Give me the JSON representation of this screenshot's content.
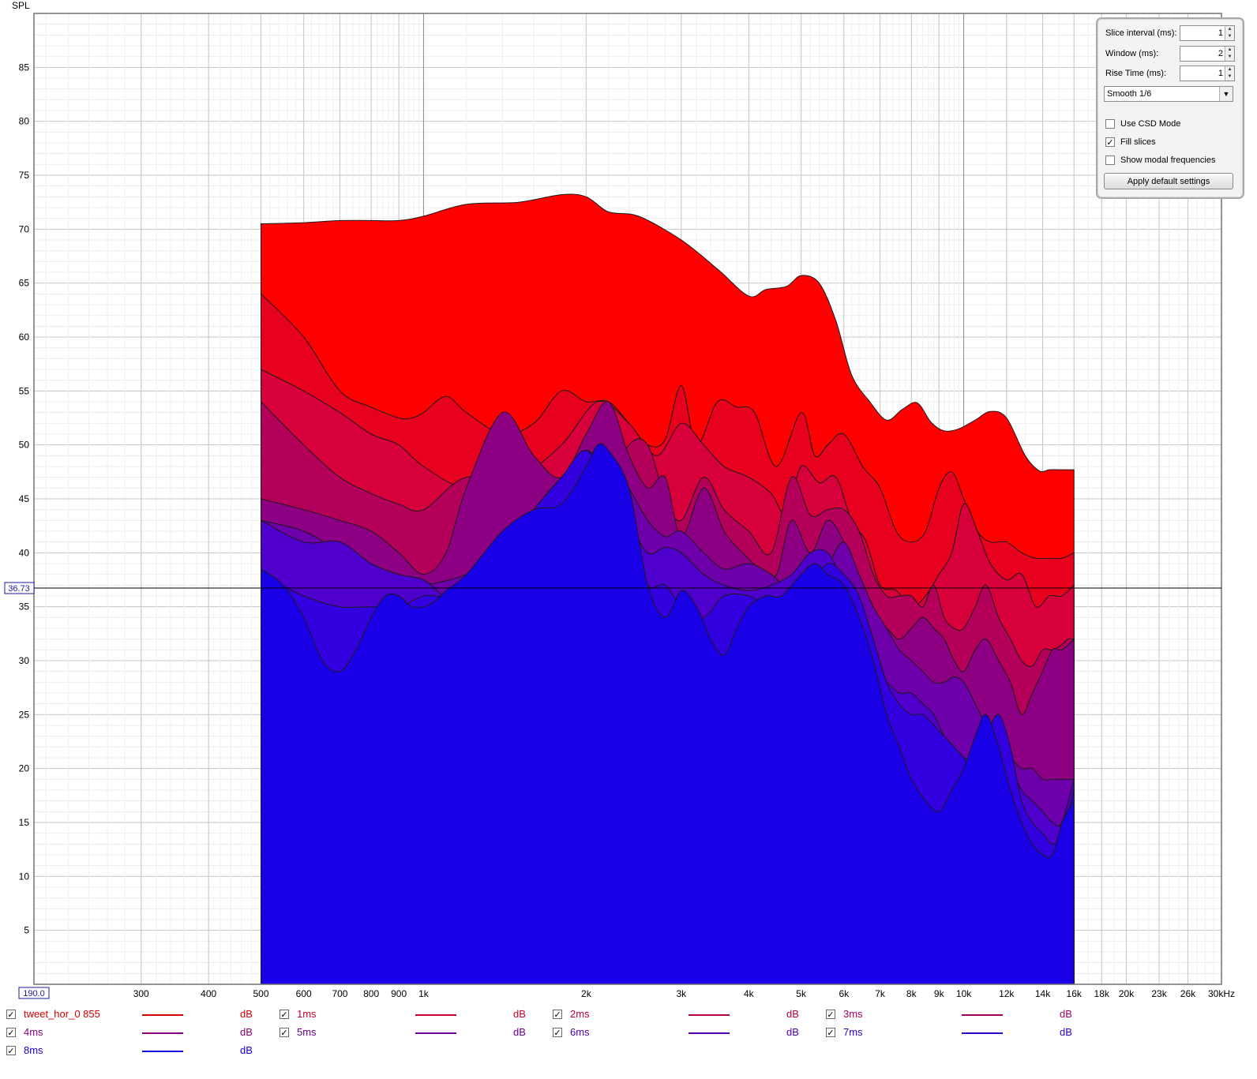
{
  "chart_data": {
    "type": "area",
    "ylabel": "SPL",
    "x_scale": "log",
    "xlim": [
      190,
      30000
    ],
    "ylim": [
      0,
      90
    ],
    "x_ticks": [
      {
        "v": 300,
        "label": "300"
      },
      {
        "v": 400,
        "label": "400"
      },
      {
        "v": 500,
        "label": "500"
      },
      {
        "v": 600,
        "label": "600"
      },
      {
        "v": 700,
        "label": "700"
      },
      {
        "v": 800,
        "label": "800"
      },
      {
        "v": 900,
        "label": "900"
      },
      {
        "v": 1000,
        "label": "1k"
      },
      {
        "v": 2000,
        "label": "2k"
      },
      {
        "v": 3000,
        "label": "3k"
      },
      {
        "v": 4000,
        "label": "4k"
      },
      {
        "v": 5000,
        "label": "5k"
      },
      {
        "v": 6000,
        "label": "6k"
      },
      {
        "v": 7000,
        "label": "7k"
      },
      {
        "v": 8000,
        "label": "8k"
      },
      {
        "v": 9000,
        "label": "9k"
      },
      {
        "v": 10000,
        "label": "10k"
      },
      {
        "v": 12000,
        "label": "12k"
      },
      {
        "v": 14000,
        "label": "14k"
      },
      {
        "v": 16000,
        "label": "16k"
      },
      {
        "v": 18000,
        "label": "18k"
      },
      {
        "v": 20000,
        "label": "20k"
      },
      {
        "v": 23000,
        "label": "23k"
      },
      {
        "v": 26000,
        "label": "26k"
      },
      {
        "v": 30000,
        "label": "30kHz"
      }
    ],
    "x_start_label": "190.0",
    "y_ticks": [
      5,
      10,
      15,
      20,
      25,
      30,
      35,
      40,
      45,
      50,
      55,
      60,
      65,
      70,
      75,
      80,
      85
    ],
    "cursor_y": 36.73,
    "cursor_label": "36.73",
    "grid": true,
    "fill_slices": true,
    "series": [
      {
        "name": "tweet_hor_0 855",
        "color": "#ff0000",
        "x": [
          500,
          600,
          700,
          800,
          900,
          1000,
          1200,
          1500,
          1800,
          2000,
          2200,
          2500,
          3000,
          3500,
          4000,
          4300,
          4700,
          5000,
          5400,
          5800,
          6200,
          6700,
          7200,
          7700,
          8200,
          8700,
          9200,
          9800,
          10500,
          11200,
          12000,
          13000,
          13800,
          14400,
          15000,
          15600,
          16000
        ],
        "y": [
          70.5,
          70.6,
          70.8,
          70.8,
          70.8,
          71.2,
          72.3,
          72.5,
          73.2,
          73,
          71.6,
          71.2,
          69,
          66.3,
          63.8,
          64.4,
          64.7,
          65.7,
          65,
          61.5,
          56.5,
          54,
          52.3,
          53.3,
          53.9,
          52.1,
          51.3,
          51.5,
          52.3,
          53.1,
          52.5,
          49,
          47.6,
          47.7,
          47.7,
          47.7,
          47.7
        ]
      },
      {
        "name": "1ms",
        "color": "#e8001f",
        "x": [
          500,
          600,
          700,
          800,
          900,
          950,
          1000,
          1100,
          1200,
          1400,
          1600,
          1800,
          2000,
          2200,
          2400,
          2600,
          2800,
          3000,
          3200,
          3500,
          3800,
          4100,
          4500,
          5000,
          5300,
          5600,
          6000,
          6500,
          7000,
          7500,
          8000,
          8500,
          9000,
          9500,
          10000,
          10600,
          11200,
          12000,
          12800,
          13600,
          14400,
          15200,
          16000
        ],
        "y": [
          64,
          60,
          55,
          53.5,
          52.5,
          52.5,
          53,
          54.5,
          53,
          51,
          52,
          55,
          54,
          54,
          52,
          50,
          50.5,
          55.5,
          50,
          54,
          53.5,
          53,
          48,
          53,
          49,
          50,
          51,
          48,
          46,
          42,
          41,
          42,
          46,
          47.5,
          45,
          42,
          41,
          41,
          40,
          39.5,
          39.5,
          39.5,
          40
        ]
      },
      {
        "name": "2ms",
        "color": "#d8003a",
        "x": [
          500,
          600,
          700,
          800,
          900,
          1000,
          1200,
          1500,
          1800,
          2100,
          2400,
          2700,
          3000,
          3300,
          3600,
          4000,
          4400,
          4700,
          5000,
          5400,
          5800,
          6200,
          6600,
          7000,
          7500,
          8000,
          8500,
          9000,
          9500,
          10000,
          10600,
          11200,
          12000,
          12800,
          13600,
          14400,
          15200,
          16000
        ],
        "y": [
          57,
          55,
          53,
          51,
          50,
          48,
          46,
          47,
          50,
          54,
          52,
          49,
          52,
          50,
          48,
          47,
          45.5,
          43.5,
          48,
          46.5,
          47,
          43,
          41,
          37,
          36.5,
          35,
          36,
          38,
          40,
          44.5,
          42,
          39,
          37.5,
          38,
          35,
          36,
          36,
          37
        ]
      },
      {
        "name": "3ms",
        "color": "#b4005a",
        "x": [
          500,
          600,
          700,
          800,
          900,
          1000,
          1200,
          1500,
          1800,
          2000,
          2200,
          2400,
          2600,
          2800,
          3000,
          3300,
          3600,
          4000,
          4400,
          4800,
          5200,
          5600,
          6000,
          6400,
          6800,
          7200,
          7600,
          8000,
          8400,
          8800,
          9200,
          9600,
          10000,
          10500,
          11000,
          11600,
          12200,
          12800,
          13400,
          14000,
          14600,
          15200,
          15600,
          16000
        ],
        "y": [
          54,
          50,
          47,
          45.5,
          44.5,
          44,
          47,
          46,
          44.5,
          47,
          46,
          50,
          50,
          45,
          43,
          47,
          44,
          42,
          40,
          47,
          43.5,
          44,
          44,
          42,
          38,
          36,
          36,
          36,
          35,
          37,
          34,
          33,
          33,
          35,
          37,
          34,
          32,
          30,
          29.5,
          31,
          31,
          31.5,
          32,
          32
        ]
      },
      {
        "name": "4ms",
        "color": "#8e0083",
        "x": [
          500,
          600,
          700,
          800,
          900,
          1000,
          1100,
          1200,
          1400,
          1600,
          1800,
          2000,
          2200,
          2400,
          2600,
          2800,
          3000,
          3300,
          3600,
          3900,
          4200,
          4500,
          4800,
          5200,
          5600,
          6000,
          6400,
          6800,
          7200,
          7600,
          8000,
          8400,
          8800,
          9200,
          9600,
          10000,
          10500,
          11000,
          11600,
          12200,
          12800,
          13400,
          14000,
          14600,
          15200,
          16000
        ],
        "y": [
          45,
          44,
          43,
          42,
          40,
          38,
          40,
          46,
          53,
          49,
          47,
          51,
          54,
          49,
          46,
          47,
          41.5,
          46,
          42,
          40,
          38.5,
          38,
          43,
          40,
          43,
          41,
          37.5,
          34,
          33,
          32,
          33,
          34,
          33,
          32,
          30,
          29,
          31,
          32,
          30,
          28,
          25,
          27,
          29,
          31,
          31,
          32
        ]
      },
      {
        "name": "5ms",
        "color": "#6e00ab",
        "x": [
          500,
          600,
          700,
          800,
          900,
          1000,
          1200,
          1400,
          1600,
          1800,
          2000,
          2200,
          2400,
          2600,
          2800,
          3000,
          3300,
          3600,
          4000,
          4400,
          4800,
          5200,
          5600,
          6000,
          6400,
          6800,
          7200,
          7600,
          8000,
          8400,
          8800,
          9200,
          9600,
          10000,
          10500,
          11000,
          11600,
          12200,
          12800,
          13400,
          14000,
          14600,
          15200,
          16000
        ],
        "y": [
          43,
          42,
          40,
          37.5,
          37,
          37,
          38,
          40,
          44,
          47,
          49,
          49,
          46,
          43,
          41.5,
          42,
          40,
          38.5,
          39,
          38,
          36.5,
          38,
          39,
          41,
          38,
          35,
          33,
          31,
          30,
          29,
          28,
          28,
          28.5,
          28,
          26,
          24,
          22,
          21,
          20,
          20,
          19,
          19,
          19,
          19
        ]
      },
      {
        "name": "6ms",
        "color": "#4f00cc",
        "x": [
          500,
          600,
          700,
          800,
          900,
          1000,
          1100,
          1200,
          1400,
          1600,
          1800,
          2000,
          2200,
          2400,
          2600,
          2800,
          3000,
          3300,
          3600,
          4000,
          4400,
          4800,
          5200,
          5600,
          6000,
          6400,
          6800,
          7200,
          7600,
          8000,
          8400,
          8800,
          9200,
          9600,
          10000,
          10500,
          11000,
          11600,
          12200,
          12800,
          13400,
          14000,
          14600,
          15200,
          16000
        ],
        "y": [
          43,
          41,
          41,
          39,
          38,
          37.5,
          36,
          37,
          41,
          44,
          47,
          49.5,
          47,
          43,
          40,
          40.5,
          40,
          38,
          37,
          36.5,
          37,
          38,
          40,
          40,
          37,
          33,
          29,
          28,
          27,
          27,
          26,
          25,
          23,
          22,
          21,
          21,
          22,
          21,
          20,
          18,
          17,
          16,
          15,
          15,
          19
        ]
      },
      {
        "name": "7ms",
        "color": "#3300e0",
        "x": [
          500,
          600,
          700,
          800,
          900,
          1000,
          1100,
          1200,
          1400,
          1600,
          1800,
          2000,
          2200,
          2400,
          2600,
          2800,
          3000,
          3300,
          3600,
          4000,
          4400,
          4800,
          5200,
          5600,
          6000,
          6400,
          6800,
          7200,
          7600,
          8000,
          8400,
          8800,
          9200,
          9600,
          10000,
          10500,
          11000,
          11600,
          12200,
          12800,
          13400,
          14000,
          14600,
          15200,
          16000
        ],
        "y": [
          38,
          36,
          35,
          35,
          35,
          36,
          36,
          37,
          40,
          44,
          47,
          49.5,
          46,
          41,
          37,
          37,
          35,
          34,
          36,
          36,
          35,
          35.5,
          37,
          39,
          38,
          36,
          32,
          28,
          26,
          25,
          25,
          24,
          23,
          22,
          21,
          20,
          23,
          25,
          22,
          17,
          15,
          14,
          13,
          14,
          18
        ]
      },
      {
        "name": "8ms",
        "color": "#1a00e6",
        "x": [
          500,
          550,
          600,
          650,
          700,
          750,
          800,
          850,
          900,
          950,
          1000,
          1050,
          1100,
          1200,
          1400,
          1600,
          1800,
          2000,
          2100,
          2200,
          2400,
          2600,
          2800,
          3000,
          3200,
          3400,
          3600,
          3800,
          4000,
          4300,
          4600,
          5000,
          5300,
          5600,
          6000,
          6400,
          6800,
          7200,
          7600,
          8000,
          8500,
          9000,
          9500,
          10000,
          10500,
          11000,
          11600,
          12200,
          12800,
          13400,
          14000,
          14600,
          15200,
          16000
        ],
        "y": [
          38.5,
          37,
          34,
          30,
          29,
          31,
          34,
          36,
          36,
          35,
          35,
          35.5,
          36.5,
          38,
          42,
          44,
          44.5,
          48,
          50,
          49.5,
          46,
          37,
          34,
          36.5,
          35,
          32,
          30.5,
          33,
          35,
          36,
          36,
          38,
          39,
          38,
          37,
          34,
          30,
          25,
          22,
          19,
          17,
          16,
          18,
          20,
          23,
          25,
          22,
          18,
          15,
          13,
          12,
          12,
          15,
          17
        ]
      }
    ]
  },
  "controls": {
    "slice_interval_label": "Slice interval (ms):",
    "slice_interval_value": "1",
    "window_label": "Window (ms):",
    "window_value": "2",
    "rise_time_label": "Rise Time (ms):",
    "rise_time_value": "1",
    "smoothing": "Smooth 1/6",
    "use_csd_label": "Use CSD Mode",
    "use_csd_checked": false,
    "fill_slices_label": "Fill slices",
    "fill_slices_checked": true,
    "show_modal_label": "Show modal frequencies",
    "show_modal_checked": false,
    "apply_label": "Apply default settings"
  },
  "legend": {
    "unit": "dB",
    "items": [
      {
        "name": "tweet_hor_0 855",
        "color": "#d20000",
        "checked": true
      },
      {
        "name": "1ms",
        "color": "#c8002a",
        "checked": true
      },
      {
        "name": "2ms",
        "color": "#b40046",
        "checked": true
      },
      {
        "name": "3ms",
        "color": "#a0005e",
        "checked": true
      },
      {
        "name": "4ms",
        "color": "#86007a",
        "checked": true
      },
      {
        "name": "5ms",
        "color": "#6a0094",
        "checked": true
      },
      {
        "name": "6ms",
        "color": "#4e00b0",
        "checked": true
      },
      {
        "name": "7ms",
        "color": "#3000c8",
        "checked": true
      },
      {
        "name": "8ms",
        "color": "#1400dc",
        "checked": true
      }
    ]
  }
}
